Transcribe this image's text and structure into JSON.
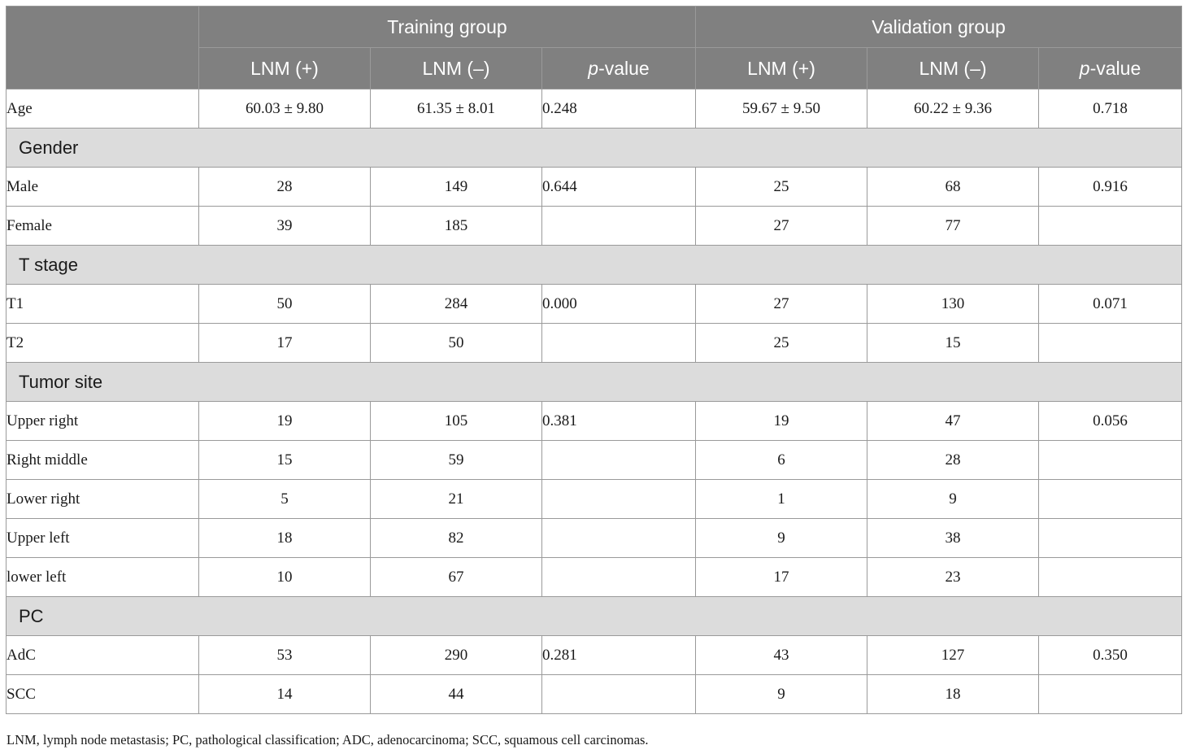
{
  "header": {
    "groups": [
      "Training group",
      "Validation group"
    ],
    "cols": [
      {
        "text": "LNM (+)",
        "italic_prefix": ""
      },
      {
        "text": "LNM (–)",
        "italic_prefix": ""
      },
      {
        "text": "-value",
        "italic_prefix": "p"
      },
      {
        "text": "LNM (+)",
        "italic_prefix": ""
      },
      {
        "text": "LNM (–)",
        "italic_prefix": ""
      },
      {
        "text": "-value",
        "italic_prefix": "p"
      }
    ]
  },
  "rows": [
    {
      "type": "data",
      "indent": false,
      "label": "Age",
      "cells": [
        "60.03 ± 9.80",
        "61.35 ± 8.01",
        "0.248",
        "59.67 ± 9.50",
        "60.22 ± 9.36",
        "0.718"
      ]
    },
    {
      "type": "section",
      "label": "Gender"
    },
    {
      "type": "data",
      "indent": true,
      "label": "Male",
      "cells": [
        "28",
        "149",
        "0.644",
        "25",
        "68",
        "0.916"
      ]
    },
    {
      "type": "data",
      "indent": true,
      "label": "Female",
      "cells": [
        "39",
        "185",
        "",
        "27",
        "77",
        ""
      ]
    },
    {
      "type": "section",
      "label": "T stage"
    },
    {
      "type": "data",
      "indent": true,
      "label": "T1",
      "cells": [
        "50",
        "284",
        "0.000",
        "27",
        "130",
        "0.071"
      ]
    },
    {
      "type": "data",
      "indent": true,
      "label": "T2",
      "cells": [
        "17",
        "50",
        "",
        "25",
        "15",
        ""
      ]
    },
    {
      "type": "section",
      "label": "Tumor site"
    },
    {
      "type": "data",
      "indent": true,
      "label": "Upper right",
      "cells": [
        "19",
        "105",
        "0.381",
        "19",
        "47",
        "0.056"
      ]
    },
    {
      "type": "data",
      "indent": true,
      "label": "Right middle",
      "cells": [
        "15",
        "59",
        "",
        "6",
        "28",
        ""
      ]
    },
    {
      "type": "data",
      "indent": true,
      "label": "Lower right",
      "cells": [
        "5",
        "21",
        "",
        "1",
        "9",
        ""
      ]
    },
    {
      "type": "data",
      "indent": true,
      "label": "Upper left",
      "cells": [
        "18",
        "82",
        "",
        "9",
        "38",
        ""
      ]
    },
    {
      "type": "data",
      "indent": true,
      "label": "lower left",
      "cells": [
        "10",
        "67",
        "",
        "17",
        "23",
        ""
      ]
    },
    {
      "type": "section",
      "label": "PC"
    },
    {
      "type": "data",
      "indent": true,
      "label": "AdC",
      "cells": [
        "53",
        "290",
        "0.281",
        "43",
        "127",
        "0.350"
      ]
    },
    {
      "type": "data",
      "indent": true,
      "label": "SCC",
      "cells": [
        "14",
        "44",
        "",
        "9",
        "18",
        ""
      ]
    }
  ],
  "footnote": "LNM, lymph node metastasis; PC, pathological classification; ADC, adenocarcinoma; SCC, squamous cell carcinomas.",
  "colors": {
    "header_bg": "#808080",
    "section_bg": "#dcdcdc",
    "border": "#9a9a9a"
  }
}
